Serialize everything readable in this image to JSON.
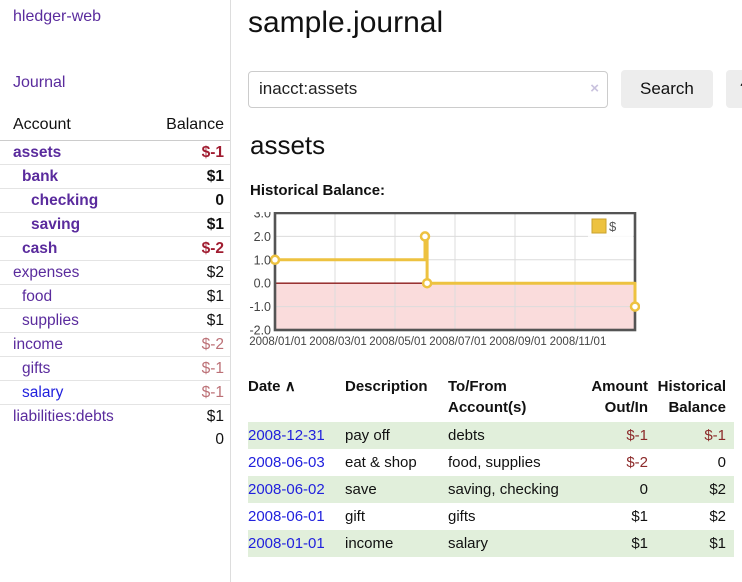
{
  "app": {
    "title": "hledger-web"
  },
  "colors": {
    "accent_purple": "#5a2b9d",
    "link_blue": "#2121dd",
    "negative_strong": "#a01c30",
    "negative_soft": "#bc7076",
    "negative_table": "#8c2a2a",
    "row_green": "#e1efdb",
    "chart_line": "#edc240",
    "chart_border": "#545454",
    "zero_line": "#8b1a1a",
    "negative_region": "#fadcdc"
  },
  "sidebar": {
    "journal_link": "Journal",
    "accounts_table": {
      "header_account": "Account",
      "header_balance": "Balance",
      "rows": [
        {
          "name": "assets",
          "level": 0,
          "bold": true,
          "blue": false,
          "balance": "$-1",
          "balance_style": "neg-strong"
        },
        {
          "name": "bank",
          "level": 1,
          "bold": true,
          "blue": false,
          "balance": "$1",
          "balance_style": ""
        },
        {
          "name": "checking",
          "level": 2,
          "bold": true,
          "blue": false,
          "balance": "0",
          "balance_style": ""
        },
        {
          "name": "saving",
          "level": 2,
          "bold": true,
          "blue": false,
          "balance": "$1",
          "balance_style": ""
        },
        {
          "name": "cash",
          "level": 1,
          "bold": true,
          "blue": false,
          "balance": "$-2",
          "balance_style": "neg-strong"
        },
        {
          "name": "expenses",
          "level": 0,
          "bold": false,
          "blue": false,
          "balance": "$2",
          "balance_style": ""
        },
        {
          "name": "food",
          "level": 1,
          "bold": false,
          "blue": false,
          "balance": "$1",
          "balance_style": ""
        },
        {
          "name": "supplies",
          "level": 1,
          "bold": false,
          "blue": false,
          "balance": "$1",
          "balance_style": ""
        },
        {
          "name": "income",
          "level": 0,
          "bold": false,
          "blue": false,
          "balance": "$-2",
          "balance_style": "neg-soft"
        },
        {
          "name": "gifts",
          "level": 1,
          "bold": false,
          "blue": false,
          "balance": "$-1",
          "balance_style": "neg-soft"
        },
        {
          "name": "salary",
          "level": 1,
          "bold": false,
          "blue": true,
          "balance": "$-1",
          "balance_style": "neg-soft"
        },
        {
          "name": "liabilities:debts",
          "level": 0,
          "bold": false,
          "blue": false,
          "balance": "$1",
          "balance_style": ""
        }
      ],
      "total": "0"
    }
  },
  "main": {
    "title": "sample.journal",
    "search": {
      "value": "inacct:assets",
      "clear_icon": "×",
      "button_label": "Search",
      "help_label": "?"
    },
    "account_heading": "assets",
    "chart_heading": "Historical Balance:",
    "register_table": {
      "headers": {
        "date": "Date",
        "sort_icon": "∧",
        "description": "Description",
        "accounts": "To/From Account(s)",
        "amount": "Amount Out/In",
        "balance": "Historical Balance"
      },
      "rows": [
        {
          "date": "2008-12-31",
          "description": "pay off",
          "accounts": "debts",
          "amount": "$-1",
          "amount_neg": true,
          "balance": "$-1",
          "balance_neg": true
        },
        {
          "date": "2008-06-03",
          "description": "eat & shop",
          "accounts": "food, supplies",
          "amount": "$-2",
          "amount_neg": true,
          "balance": "0",
          "balance_neg": false
        },
        {
          "date": "2008-06-02",
          "description": "save",
          "accounts": "saving, checking",
          "amount": "0",
          "amount_neg": false,
          "balance": "$2",
          "balance_neg": false
        },
        {
          "date": "2008-06-01",
          "description": "gift",
          "accounts": "gifts",
          "amount": "$1",
          "amount_neg": false,
          "balance": "$2",
          "balance_neg": false
        },
        {
          "date": "2008-01-01",
          "description": "income",
          "accounts": "salary",
          "amount": "$1",
          "amount_neg": false,
          "balance": "$1",
          "balance_neg": false
        }
      ]
    }
  },
  "chart_data": {
    "type": "line",
    "title": "Historical Balance",
    "legend_label": "$",
    "legend_position": "top-right",
    "step": true,
    "ylim": [
      -2,
      3
    ],
    "grid": true,
    "negative_region_shaded": true,
    "series": [
      {
        "name": "$",
        "x": [
          "2008-01-01",
          "2008-06-01",
          "2008-06-03",
          "2008-12-31"
        ],
        "y": [
          1,
          2,
          0,
          -1
        ]
      }
    ],
    "points_months": [
      {
        "m": 0,
        "v": 1
      },
      {
        "m": 5,
        "v": 2
      },
      {
        "m": 5.07,
        "v": 0
      },
      {
        "m": 12,
        "v": -1
      }
    ],
    "y_ticks": [
      {
        "v": 3,
        "label": "3.0"
      },
      {
        "v": 2,
        "label": "2.0"
      },
      {
        "v": 1,
        "label": "1.0"
      },
      {
        "v": 0,
        "label": "0.0"
      },
      {
        "v": -1,
        "label": "-1.0"
      },
      {
        "v": -2,
        "label": "-2.0"
      }
    ],
    "x_ticks": [
      {
        "m": 0,
        "label": "2008/01/01"
      },
      {
        "m": 2,
        "label": "2008/03/01"
      },
      {
        "m": 4,
        "label": "2008/05/01"
      },
      {
        "m": 6,
        "label": "2008/07/01"
      },
      {
        "m": 8,
        "label": "2008/09/01"
      },
      {
        "m": 10,
        "label": "2008/11/01"
      }
    ],
    "grid_months": [
      2,
      4,
      6,
      8,
      10
    ]
  }
}
